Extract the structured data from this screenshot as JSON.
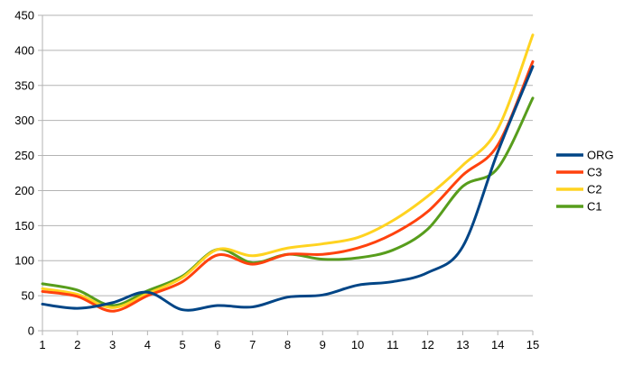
{
  "chart_data": {
    "type": "line",
    "x": [
      1,
      2,
      3,
      4,
      5,
      6,
      7,
      8,
      9,
      10,
      11,
      12,
      13,
      14,
      15
    ],
    "ylim": [
      0,
      450
    ],
    "yticks": [
      0,
      50,
      100,
      150,
      200,
      250,
      300,
      350,
      400,
      450
    ],
    "grid": "horizontal",
    "legend_position": "right",
    "series": [
      {
        "name": "ORG",
        "color": "#004586",
        "values": [
          38,
          32,
          40,
          55,
          30,
          36,
          34,
          48,
          51,
          65,
          70,
          83,
          120,
          255,
          377
        ]
      },
      {
        "name": "C3",
        "color": "#ff420e",
        "values": [
          56,
          49,
          28,
          50,
          70,
          108,
          95,
          109,
          109,
          118,
          138,
          170,
          222,
          265,
          384
        ]
      },
      {
        "name": "C2",
        "color": "#ffd320",
        "values": [
          60,
          52,
          33,
          53,
          76,
          116,
          107,
          118,
          124,
          133,
          157,
          192,
          236,
          288,
          422
        ]
      },
      {
        "name": "C1",
        "color": "#579d1c",
        "values": [
          67,
          58,
          36,
          57,
          78,
          116,
          97,
          109,
          102,
          104,
          115,
          145,
          206,
          232,
          332
        ]
      }
    ]
  }
}
